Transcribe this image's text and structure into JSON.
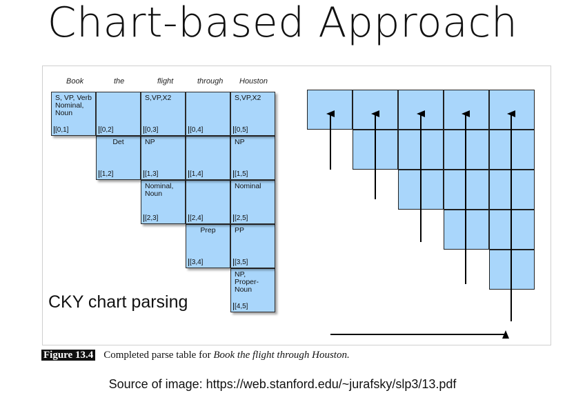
{
  "title": "Chart-based Approach",
  "words": [
    "Book",
    "the",
    "flight",
    "through",
    "Houston"
  ],
  "cells": [
    {
      "label": "S, VP, Verb\nNominal,\nNoun",
      "span": "[0,1]",
      "row": 0,
      "col": 0
    },
    {
      "label": "",
      "span": "[0,2]",
      "row": 0,
      "col": 1
    },
    {
      "label": "S,VP,X2",
      "span": "[0,3]",
      "row": 0,
      "col": 2
    },
    {
      "label": "",
      "span": "[0,4]",
      "row": 0,
      "col": 3
    },
    {
      "label": "S,VP,X2",
      "span": "[0,5]",
      "row": 0,
      "col": 4
    },
    {
      "label": "Det",
      "span": "[1,2]",
      "row": 1,
      "col": 1,
      "center": true
    },
    {
      "label": "NP",
      "span": "[1,3]",
      "row": 1,
      "col": 2
    },
    {
      "label": "",
      "span": "[1,4]",
      "row": 1,
      "col": 3
    },
    {
      "label": "NP",
      "span": "[1,5]",
      "row": 1,
      "col": 4
    },
    {
      "label": "Nominal,\nNoun",
      "span": "[2,3]",
      "row": 2,
      "col": 2
    },
    {
      "label": "",
      "span": "[2,4]",
      "row": 2,
      "col": 3
    },
    {
      "label": "Nominal",
      "span": "[2,5]",
      "row": 2,
      "col": 4
    },
    {
      "label": "Prep",
      "span": "[3,4]",
      "row": 3,
      "col": 3,
      "center": true
    },
    {
      "label": "PP",
      "span": "[3,5]",
      "row": 3,
      "col": 4
    },
    {
      "label": "NP,\nProper-\nNoun",
      "span": "[4,5]",
      "row": 4,
      "col": 4
    }
  ],
  "overlay_label": "CKY chart parsing",
  "figure": {
    "number": "Figure 13.4",
    "caption": "Completed parse table for ",
    "caption_italic": "Book the flight through Houston."
  },
  "source": "Source of image: https://web.stanford.edu/~jurafsky/slp3/13.pdf",
  "colors": {
    "cell_fill": "#a9d6fb",
    "border": "#1f1f1f"
  }
}
